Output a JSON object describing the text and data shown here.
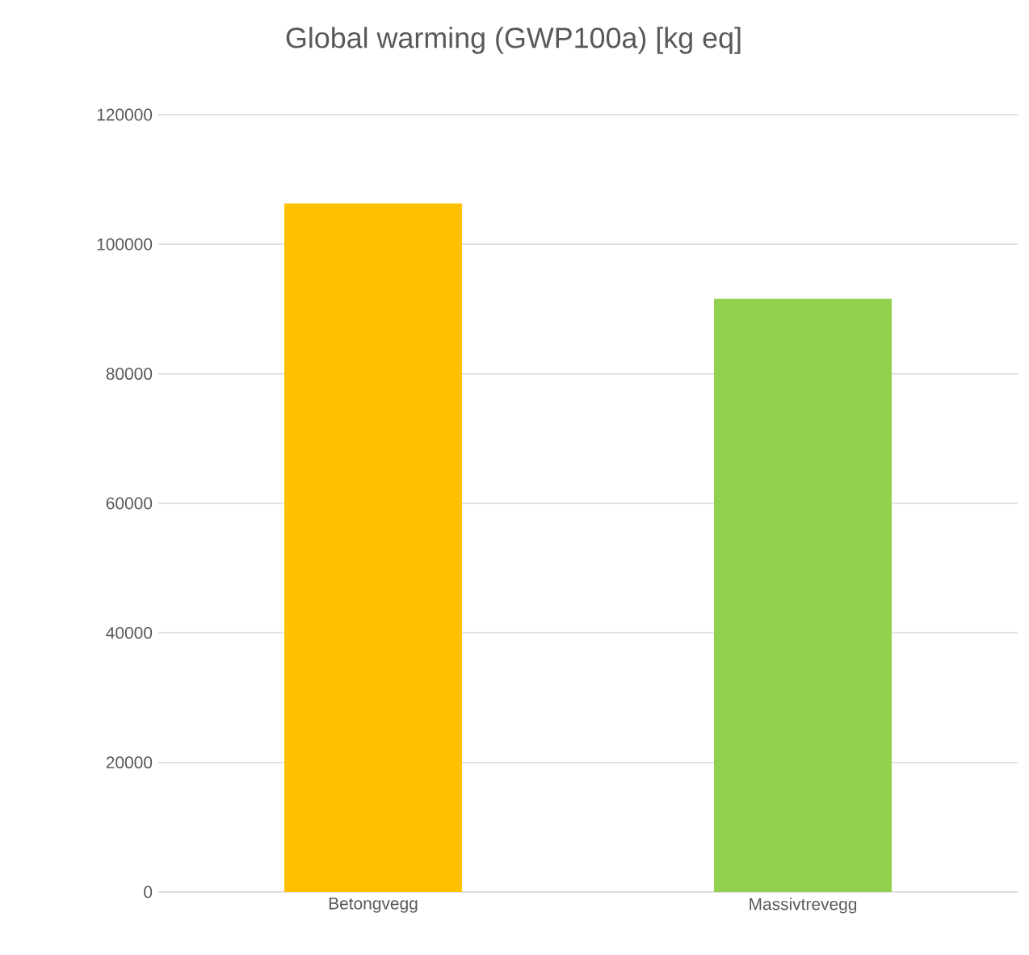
{
  "chart_data": {
    "type": "bar",
    "title": "Global warming (GWP100a) [kg eq]",
    "categories": [
      "Betongvegg",
      "Massivtrevegg"
    ],
    "values": [
      106300,
      91600
    ],
    "colors": [
      "#ffc000",
      "#92d050"
    ],
    "ylim": [
      0,
      120000
    ],
    "yticks": [
      0,
      20000,
      40000,
      60000,
      80000,
      100000,
      120000
    ],
    "grid": "y"
  }
}
